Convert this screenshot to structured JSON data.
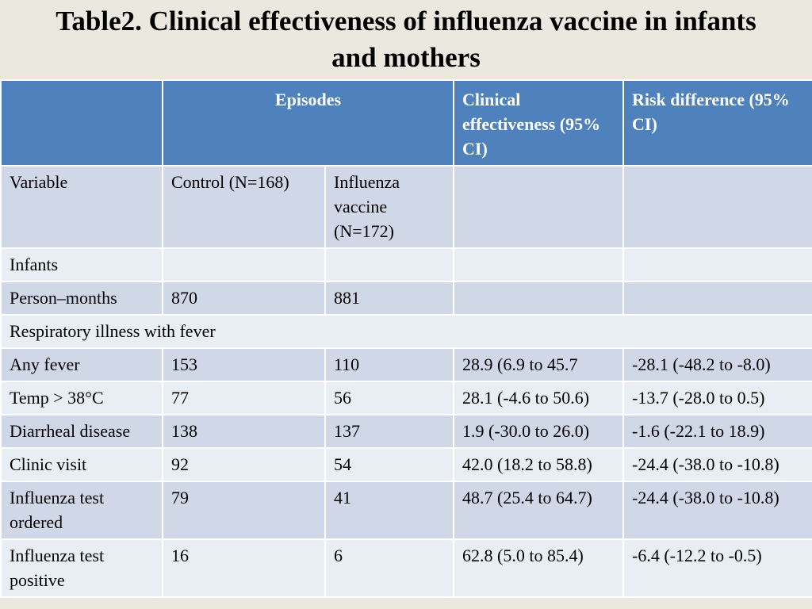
{
  "title": "Table2. Clinical effectiveness of influenza vaccine in infants and mothers",
  "table": {
    "header": {
      "blank": "",
      "episodes": "Episodes",
      "clinical_effectiveness": "Clinical effectiveness (95% CI)",
      "risk_difference": "Risk difference (95% CI)"
    },
    "subheader": {
      "variable": "Variable",
      "control": "Control (N=168)",
      "vaccine": "Influenza vaccine (N=172)",
      "effectiveness": "",
      "risk": ""
    },
    "section_infants": "Infants",
    "person_months": {
      "label": "Person–months",
      "control": "870",
      "vaccine": "881",
      "effectiveness": "",
      "risk": ""
    },
    "section_respiratory": "Respiratory illness with fever",
    "rows": [
      {
        "label": "Any fever",
        "control": "153",
        "vaccine": "110",
        "effectiveness": "28.9 (6.9 to 45.7",
        "risk": "-28.1 (-48.2 to -8.0)"
      },
      {
        "label": "Temp > 38°C",
        "control": "77",
        "vaccine": "56",
        "effectiveness": "28.1 (-4.6 to 50.6)",
        "risk": "-13.7 (-28.0 to 0.5)"
      },
      {
        "label": "Diarrheal disease",
        "control": "138",
        "vaccine": "137",
        "effectiveness": "1.9 (-30.0 to 26.0)",
        "risk": "-1.6 (-22.1 to 18.9)"
      },
      {
        "label": "Clinic visit",
        "control": "92",
        "vaccine": "54",
        "effectiveness": "42.0 (18.2 to 58.8)",
        "risk": "-24.4 (-38.0 to -10.8)"
      },
      {
        "label": "Influenza test ordered",
        "control": "79",
        "vaccine": "41",
        "effectiveness": "48.7 (25.4 to 64.7)",
        "risk": "-24.4 (-38.0 to -10.8)"
      },
      {
        "label": "Influenza test positive",
        "control": "16",
        "vaccine": "6",
        "effectiveness": "62.8 (5.0 to 85.4)",
        "risk": "-6.4 (-12.2 to -0.5)"
      }
    ]
  },
  "colors": {
    "header": "#4f81bd",
    "row_dark": "#d0d8e8",
    "row_light": "#e9edf4",
    "background": "#ebe9df"
  }
}
